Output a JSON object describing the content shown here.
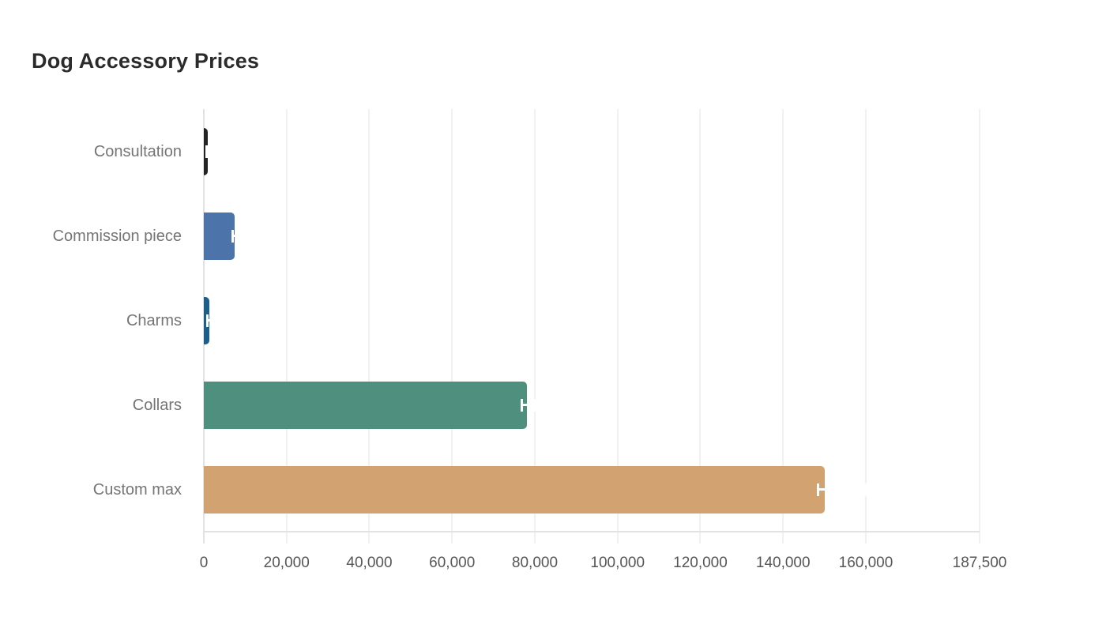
{
  "title": "Dog Accessory Prices",
  "chart_data": {
    "type": "bar",
    "orientation": "horizontal",
    "title": "Dog Accessory Prices",
    "categories": [
      "Consultation",
      "Commission piece",
      "Charms",
      "Collars",
      "Custom max"
    ],
    "values": [
      950,
      7400,
      1400,
      78000,
      150000
    ],
    "error_low": [
      600,
      6900,
      900,
      76800,
      148500
    ],
    "error_high": [
      1300,
      7900,
      1900,
      79900,
      160000
    ],
    "bar_colors": [
      "#242424",
      "#4c74aa",
      "#1b608b",
      "#4f8f7d",
      "#d2a370"
    ],
    "error_bar_color": "#ffffff",
    "xlabel": "",
    "ylabel": "",
    "xlim": [
      0,
      187500
    ],
    "x_ticks": [
      0,
      20000,
      40000,
      60000,
      80000,
      100000,
      120000,
      140000,
      160000,
      187500
    ],
    "x_tick_labels": [
      "0",
      "20,000",
      "40,000",
      "60,000",
      "80,000",
      "100,000",
      "120,000",
      "140,000",
      "160,000",
      "187,500"
    ],
    "grid": "vertical-only",
    "legend": false
  },
  "colors": {
    "background": "#ffffff",
    "title_text": "#2b2b2b",
    "category_label_text": "#757575",
    "tick_label_text": "#565656",
    "gridline": "#f1f1f1",
    "axis_line": "#e2e2e2"
  }
}
